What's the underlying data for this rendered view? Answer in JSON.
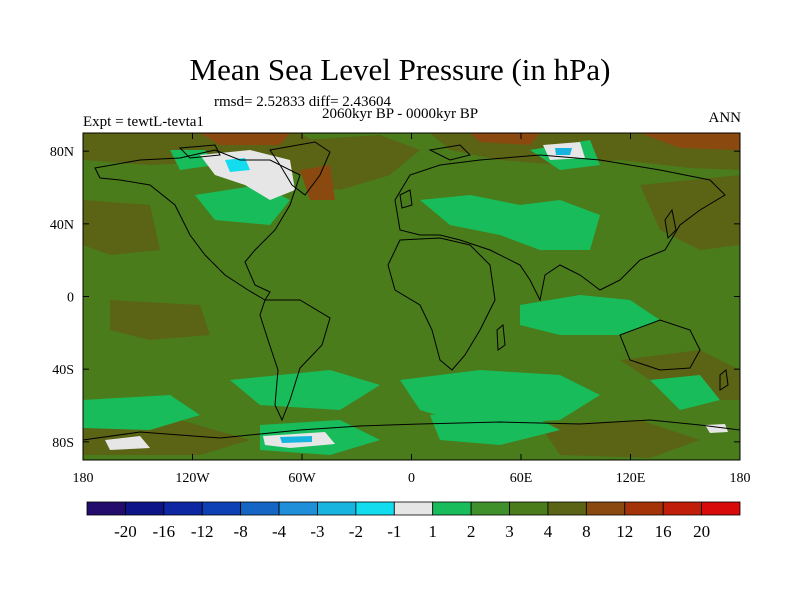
{
  "title": "Mean Sea Level Pressure (in hPa)",
  "stats": "rmsd= 2.52833  diff= 2.43604",
  "period": "2060kyr BP - 0000kyr BP",
  "experiment": "Expt = tewtL-tevta1",
  "season": "ANN",
  "map": {
    "projection": "cylindrical-equidistant",
    "lon_range": [
      -180,
      180
    ],
    "lat_range": [
      -90,
      90
    ],
    "lon_ticks": [
      -180,
      -120,
      -60,
      0,
      60,
      120,
      180
    ],
    "lon_tick_labels": [
      "180",
      "120W",
      "60W",
      "0",
      "60E",
      "120E",
      "180"
    ],
    "lat_ticks": [
      80,
      40,
      0,
      -40,
      -80
    ],
    "lat_tick_labels": [
      "80N",
      "40N",
      "0",
      "40S",
      "80S"
    ],
    "background_value_color": "#4a7c1c"
  },
  "colorbar": {
    "levels": [
      "-20",
      "-16",
      "-12",
      "-8",
      "-4",
      "-3",
      "-2",
      "-1",
      "1",
      "2",
      "3",
      "4",
      "8",
      "12",
      "16",
      "20"
    ],
    "colors": [
      "#230c6b",
      "#0d1487",
      "#0d27a3",
      "#0d3fb5",
      "#1565c4",
      "#1e8fd8",
      "#18b4e0",
      "#12dcee",
      "#e6e6e6",
      "#19bc5a",
      "#3f8f2a",
      "#4a7c1c",
      "#5a6414",
      "#8a4a0f",
      "#a43408",
      "#c01e08",
      "#d80a0a"
    ]
  }
}
